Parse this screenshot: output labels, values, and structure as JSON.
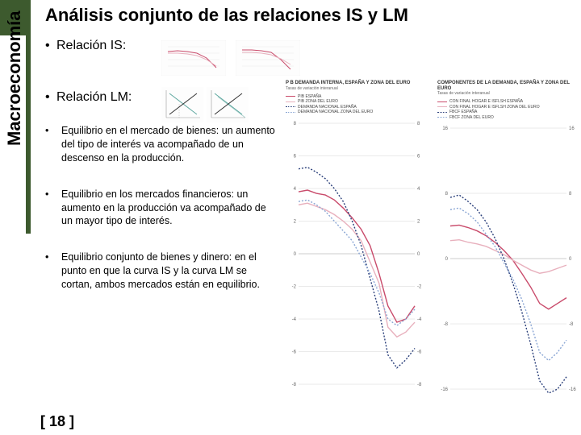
{
  "sidebar_label": "Macroeconomía",
  "title": "Análisis conjunto de las relaciones IS y LM",
  "bullets_major": [
    "Relación IS:",
    "Relación LM:"
  ],
  "bullets_minor": [
    "Equilibrio en el mercado de bienes: un aumento del tipo de interés va acompañado de un descenso en la producción.",
    "Equilibrio en los mercados financieros: un aumento en la producción va acompañado de un mayor  tipo de interés.",
    "Equilibrio conjunto de bienes y dinero: en el punto en que la curva IS y la curva LM se cortan, ambos mercados están en equilibrio."
  ],
  "page_number": "[ 18 ]",
  "colors": {
    "accent": "#3d5a2e",
    "chart_spain": "#c94b6b",
    "chart_euro_light": "#e8b0bd",
    "chart_blue": "#4a6fa5",
    "chart_blue_dark": "#2a3f7a",
    "grid": "#cccccc"
  },
  "chart_left": {
    "title": "P B DEMANDA INTERNA, ESPAÑA Y ZONA DEL EURO",
    "subtitle": "Tasas de variación interanual",
    "legend": [
      {
        "label": "PIB ESPAÑA",
        "color": "#c94b6b",
        "style": "solid"
      },
      {
        "label": "PIB ZONA DEL EURO",
        "color": "#e8b0bd",
        "style": "solid"
      },
      {
        "label": "DEMANDA NACIONAL ESPAÑA",
        "color": "#2a3f7a",
        "style": "dotted"
      },
      {
        "label": "DEMANDA NACIONAL ZONA DEL EURO",
        "color": "#8aa6d4",
        "style": "dotted"
      }
    ],
    "yticks": [
      8,
      6,
      4,
      2,
      0,
      -2,
      -4,
      -6,
      -8
    ],
    "series": {
      "pib_spain": [
        3.8,
        3.9,
        3.7,
        3.6,
        3.3,
        2.8,
        2.2,
        1.5,
        0.5,
        -1.2,
        -3.2,
        -4.2,
        -4.0,
        -3.2
      ],
      "pib_euro": [
        3.0,
        3.1,
        2.9,
        2.7,
        2.4,
        2.0,
        1.5,
        0.8,
        -0.5,
        -1.8,
        -4.5,
        -5.1,
        -4.8,
        -4.2
      ],
      "dem_spain": [
        5.2,
        5.3,
        5.0,
        4.6,
        4.0,
        3.2,
        2.0,
        0.5,
        -1.5,
        -3.5,
        -6.2,
        -7.0,
        -6.5,
        -5.8
      ],
      "dem_euro": [
        3.2,
        3.3,
        3.0,
        2.6,
        2.0,
        1.4,
        0.8,
        -0.2,
        -1.2,
        -2.4,
        -4.0,
        -4.4,
        -4.0,
        -3.4
      ]
    }
  },
  "chart_right": {
    "title": "COMPONENTES DE LA DEMANDA, ESPAÑA Y ZONA DEL EURO",
    "subtitle": "Tasas de variación interanual",
    "legend": [
      {
        "label": "CON FINAL HOGAR E ISFLSH ESPAÑA",
        "color": "#c94b6b",
        "style": "solid"
      },
      {
        "label": "CON FINAL HOGAR E ISFLSH ZONA DEL EURO",
        "color": "#e8b0bd",
        "style": "solid"
      },
      {
        "label": "FBCF ESPAÑA",
        "color": "#2a3f7a",
        "style": "dotted"
      },
      {
        "label": "FBCF ZONA DEL EURO",
        "color": "#8aa6d4",
        "style": "dotted"
      }
    ],
    "yticks": [
      16,
      8,
      0,
      -8,
      -16
    ],
    "series": {
      "con_spain": [
        4.0,
        4.1,
        3.8,
        3.4,
        2.8,
        2.0,
        1.0,
        -0.2,
        -1.8,
        -3.5,
        -5.5,
        -6.2,
        -5.5,
        -4.8
      ],
      "con_euro": [
        2.2,
        2.3,
        2.0,
        1.8,
        1.5,
        1.0,
        0.5,
        -0.2,
        -0.8,
        -1.4,
        -1.8,
        -1.6,
        -1.2,
        -0.8
      ],
      "fbcf_spain": [
        7.5,
        7.8,
        7.0,
        6.0,
        4.5,
        2.5,
        0.0,
        -3.0,
        -6.5,
        -10.5,
        -15.0,
        -16.5,
        -16.0,
        -14.5
      ],
      "fbcf_euro": [
        6.0,
        6.2,
        5.5,
        4.5,
        3.0,
        1.5,
        -0.5,
        -2.5,
        -5.0,
        -8.0,
        -11.5,
        -12.5,
        -11.5,
        -10.0
      ]
    }
  }
}
